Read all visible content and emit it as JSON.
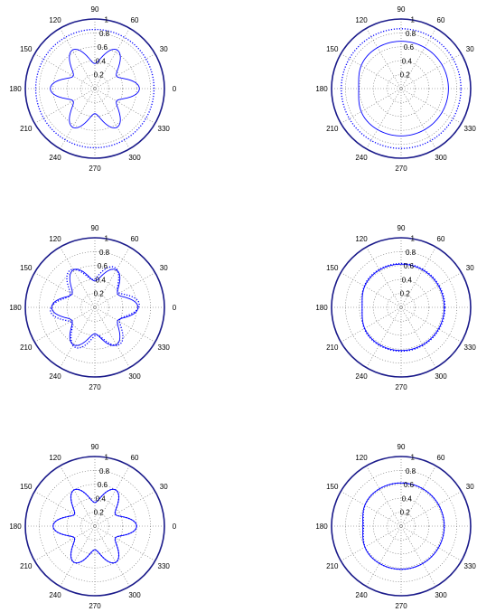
{
  "chart_data": [
    {
      "type": "polar",
      "position": "row-1-left",
      "r_ticks": [
        "0.2",
        "0.4",
        "0.6",
        "0.8",
        "1"
      ],
      "angle_ticks": [
        "0",
        "30",
        "60",
        "90",
        "120",
        "150",
        "180",
        "210",
        "240",
        "270",
        "300",
        "330"
      ],
      "rlim": [
        0,
        1
      ],
      "grid": true,
      "series": [
        {
          "style": "solid",
          "shape": "6-lobed rosette",
          "mean_radius": 0.5,
          "lobe_amplitude": 0.14,
          "lobes": 6,
          "phase_deg": 0
        },
        {
          "style": "dotted",
          "shape": "circle",
          "radius": 0.85
        }
      ]
    },
    {
      "type": "polar",
      "position": "row-1-right",
      "r_ticks": [
        "0.2",
        "0.4",
        "0.6",
        "0.8",
        "1"
      ],
      "angle_ticks": [
        "0",
        "30",
        "60",
        "90",
        "120",
        "150",
        "180",
        "210",
        "240",
        "270",
        "300",
        "330"
      ],
      "rlim": [
        0,
        1
      ],
      "grid": true,
      "series": [
        {
          "style": "solid",
          "shape": "circle with flattening near 180",
          "radius": 0.68,
          "flatten_at_deg": 180,
          "flatten_depth": 0.07
        },
        {
          "style": "dotted",
          "shape": "circle",
          "radius": 0.86
        }
      ]
    },
    {
      "type": "polar",
      "position": "row-2-left",
      "r_ticks": [
        "0.2",
        "0.4",
        "0.6",
        "0.8",
        "1"
      ],
      "angle_ticks": [
        "0",
        "30",
        "60",
        "90",
        "120",
        "150",
        "180",
        "210",
        "240",
        "270",
        "300",
        "330"
      ],
      "rlim": [
        0,
        1
      ],
      "grid": true,
      "series": [
        {
          "style": "solid",
          "shape": "6-lobed rosette",
          "mean_radius": 0.5,
          "lobe_amplitude": 0.12,
          "lobes": 6,
          "phase_deg": 0
        },
        {
          "style": "dotted",
          "shape": "6-lobed rosette",
          "mean_radius": 0.52,
          "lobe_amplitude": 0.12,
          "lobes": 6,
          "phase_deg": 4
        }
      ]
    },
    {
      "type": "polar",
      "position": "row-2-right",
      "r_ticks": [
        "0.2",
        "0.4",
        "0.6",
        "0.8",
        "1"
      ],
      "angle_ticks": [
        "0",
        "30",
        "60",
        "90",
        "120",
        "150",
        "180",
        "210",
        "240",
        "270",
        "300",
        "330"
      ],
      "rlim": [
        0,
        1
      ],
      "grid": true,
      "series": [
        {
          "style": "solid",
          "shape": "circle with flattening near 180",
          "radius": 0.62,
          "flatten_at_deg": 180,
          "flatten_depth": 0.06
        },
        {
          "style": "dotted",
          "shape": "circle with flattening near 180",
          "radius": 0.63,
          "flatten_at_deg": 180,
          "flatten_depth": 0.07
        }
      ]
    },
    {
      "type": "polar",
      "position": "row-3-left",
      "r_ticks": [
        "0.2",
        "0.4",
        "0.6",
        "0.8",
        "1"
      ],
      "angle_ticks": [
        "0",
        "30",
        "60",
        "90",
        "120",
        "150",
        "180",
        "210",
        "240",
        "270",
        "300",
        "330"
      ],
      "rlim": [
        0,
        1
      ],
      "grid": true,
      "series": [
        {
          "style": "solid",
          "shape": "6-lobed rosette",
          "mean_radius": 0.47,
          "lobe_amplitude": 0.13,
          "lobes": 6,
          "phase_deg": 0
        },
        {
          "style": "dotted",
          "shape": "6-lobed rosette",
          "mean_radius": 0.47,
          "lobe_amplitude": 0.13,
          "lobes": 6,
          "phase_deg": 0
        }
      ]
    },
    {
      "type": "polar",
      "position": "row-3-right",
      "r_ticks": [
        "0.2",
        "0.4",
        "0.6",
        "0.8",
        "1"
      ],
      "angle_ticks": [
        "0",
        "30",
        "60",
        "90",
        "120",
        "150",
        "180",
        "210",
        "240",
        "270",
        "300",
        "330"
      ],
      "rlim": [
        0,
        1
      ],
      "grid": true,
      "series": [
        {
          "style": "solid",
          "shape": "circle with flattening near 180",
          "radius": 0.62,
          "flatten_at_deg": 180,
          "flatten_depth": 0.07
        },
        {
          "style": "dotted",
          "shape": "circle with flattening near 180",
          "radius": 0.62,
          "flatten_at_deg": 180,
          "flatten_depth": 0.08
        }
      ]
    }
  ],
  "colors": {
    "outer_ring": "#1a1a8a",
    "series": "#0000ff",
    "grid": "#666666",
    "text": "#000000"
  }
}
